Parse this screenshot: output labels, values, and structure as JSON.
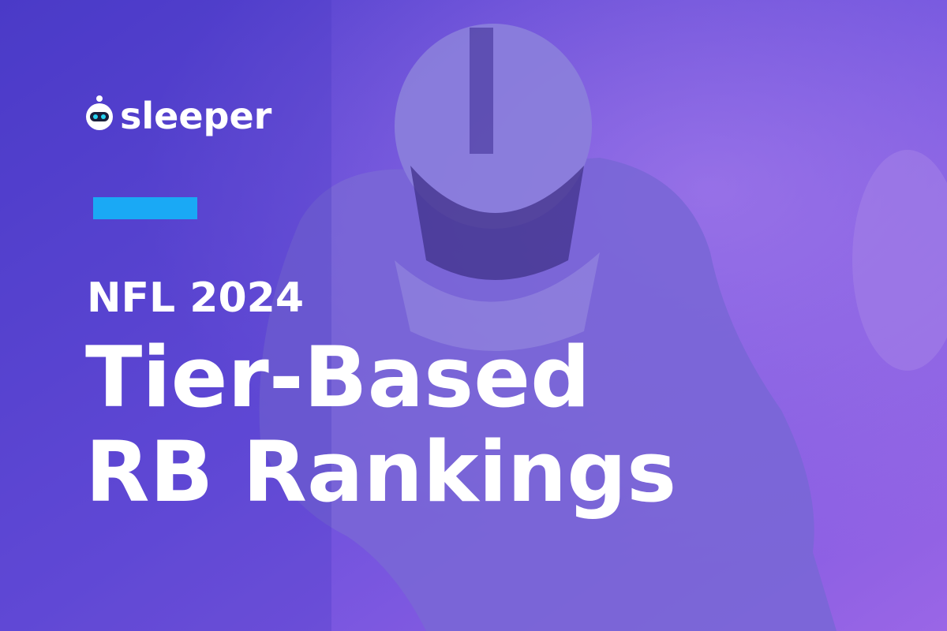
{
  "brand": {
    "name": "sleeper"
  },
  "headline": {
    "kicker": "NFL 2024",
    "lines": [
      "Tier-Based",
      "RB Rankings"
    ]
  }
}
